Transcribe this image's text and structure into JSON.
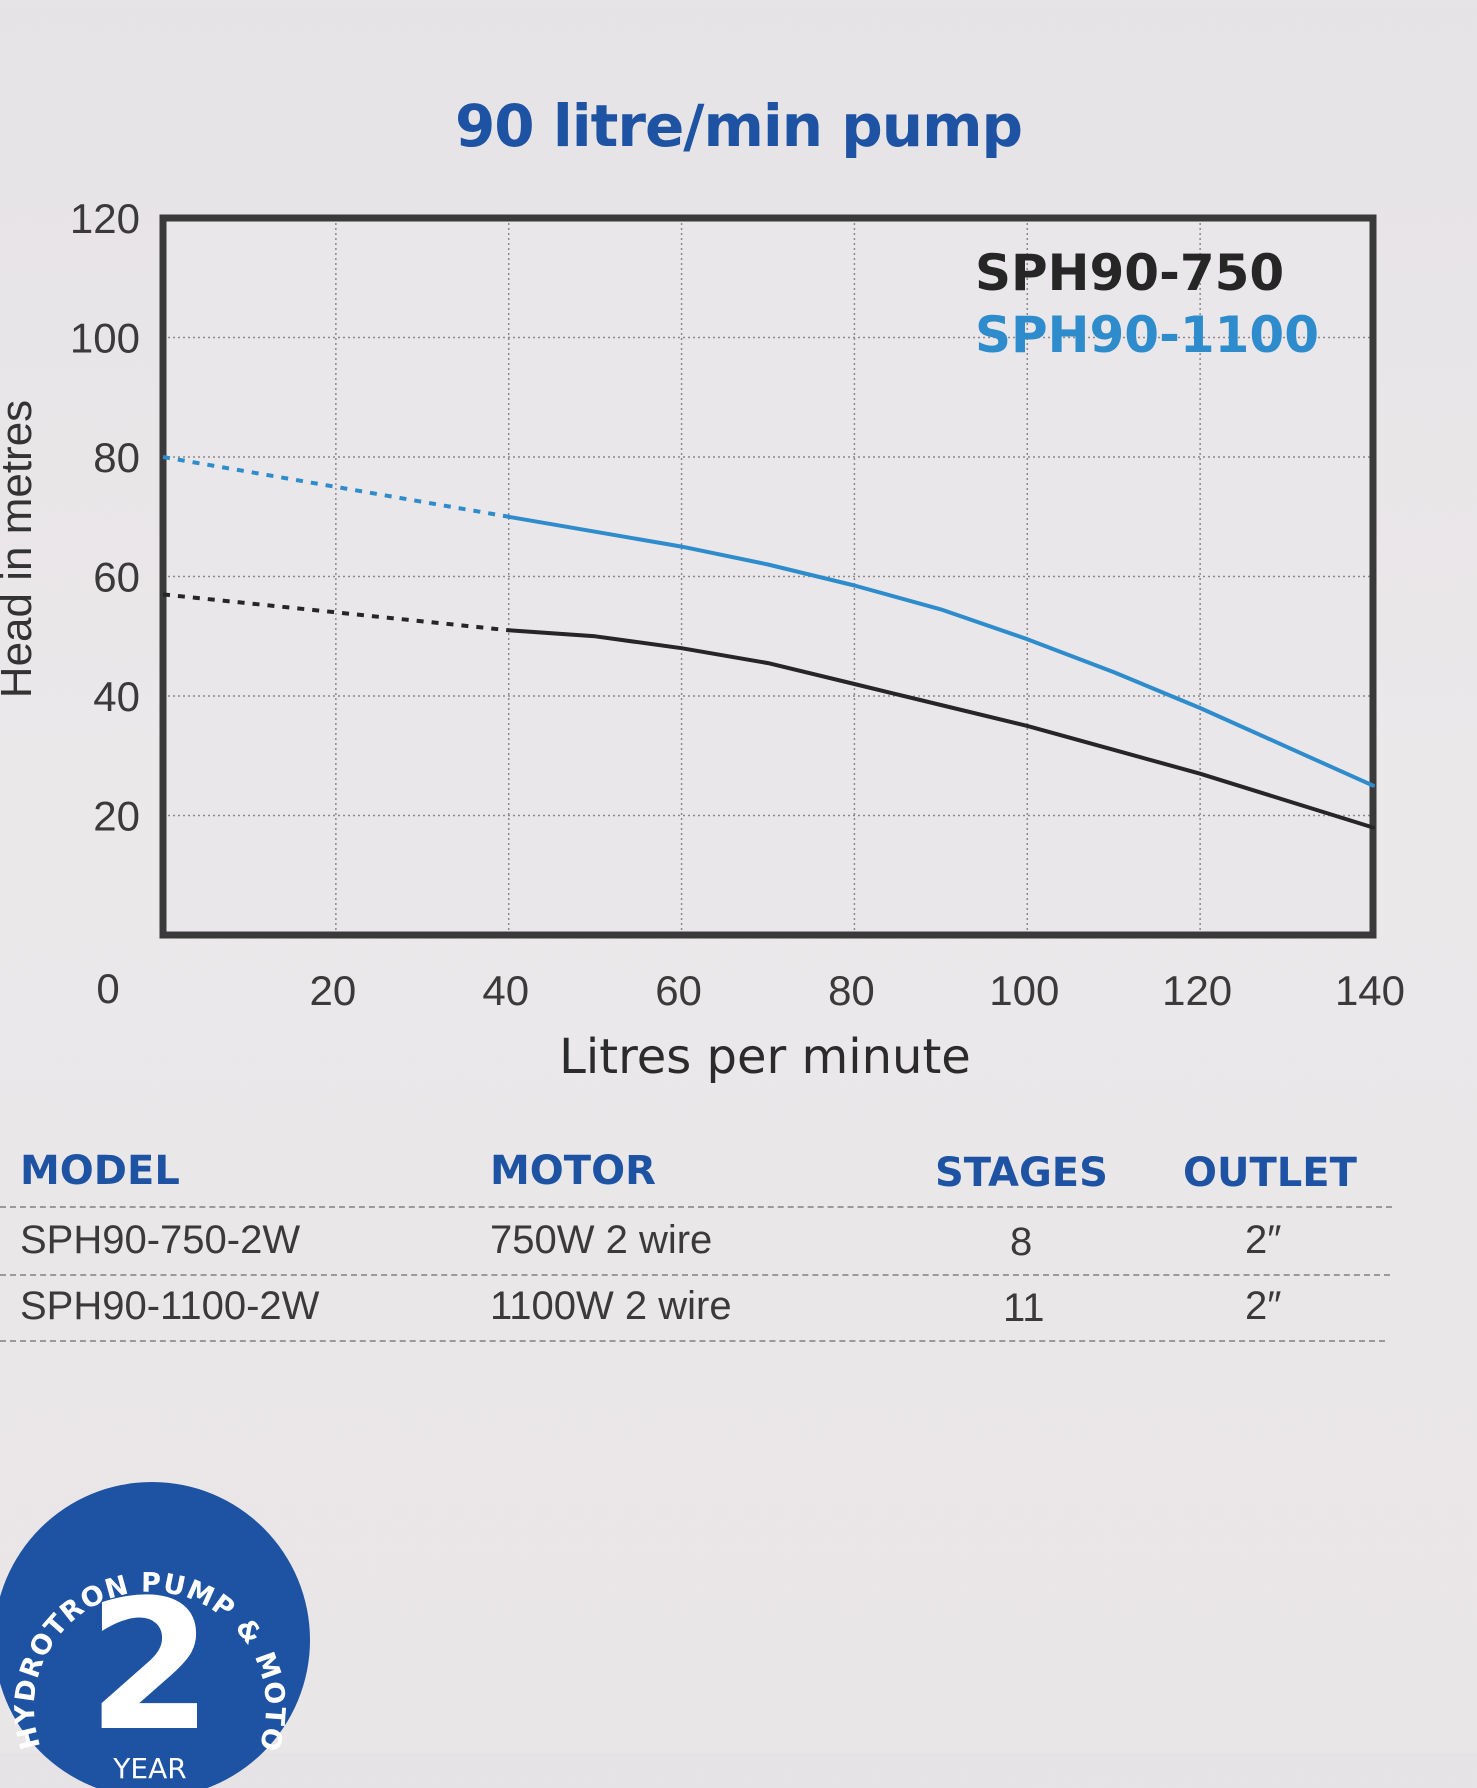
{
  "colors": {
    "series_750": "#262626",
    "series_1100": "#2f8ccc",
    "brand_blue": "#1e52a3"
  },
  "chart_data": {
    "type": "line",
    "title": "90 litre/min pump",
    "xlabel": "Litres per minute",
    "ylabel": "Head in metres",
    "xlim": [
      0,
      140
    ],
    "ylim": [
      0,
      120
    ],
    "xticks": [
      20,
      40,
      60,
      80,
      100,
      120,
      140
    ],
    "yticks": [
      20,
      40,
      60,
      80,
      100,
      120
    ],
    "origin_label": "0",
    "grid": true,
    "legend": "top-right",
    "series": [
      {
        "name": "SPH90-750",
        "dashed_x": [
          0,
          20,
          40
        ],
        "dashed_y": [
          57,
          54,
          51
        ],
        "x": [
          40,
          50,
          60,
          70,
          80,
          90,
          100,
          110,
          120,
          130,
          140
        ],
        "y": [
          51,
          50,
          48,
          45.5,
          42,
          38.5,
          35,
          31,
          27,
          22.5,
          18
        ]
      },
      {
        "name": "SPH90-1100",
        "dashed_x": [
          0,
          20,
          40
        ],
        "dashed_y": [
          80,
          75,
          70
        ],
        "x": [
          40,
          50,
          60,
          70,
          80,
          90,
          100,
          110,
          120,
          130,
          140
        ],
        "y": [
          70,
          67.5,
          65,
          62,
          58.5,
          54.5,
          49.5,
          44,
          38,
          31.5,
          25
        ]
      }
    ]
  },
  "table": {
    "headers": [
      "MODEL",
      "MOTOR",
      "STAGES",
      "OUTLET"
    ],
    "rows": [
      [
        "SPH90-750-2W",
        "750W 2 wire",
        "8",
        "2″"
      ],
      [
        "SPH90-1100-2W",
        "1100W 2 wire",
        "11",
        "2″"
      ]
    ]
  },
  "badge": {
    "arc_text": "HYDROTRON PUMP & MOTOR WARRANTY",
    "number": "2",
    "unit": "YEAR"
  }
}
